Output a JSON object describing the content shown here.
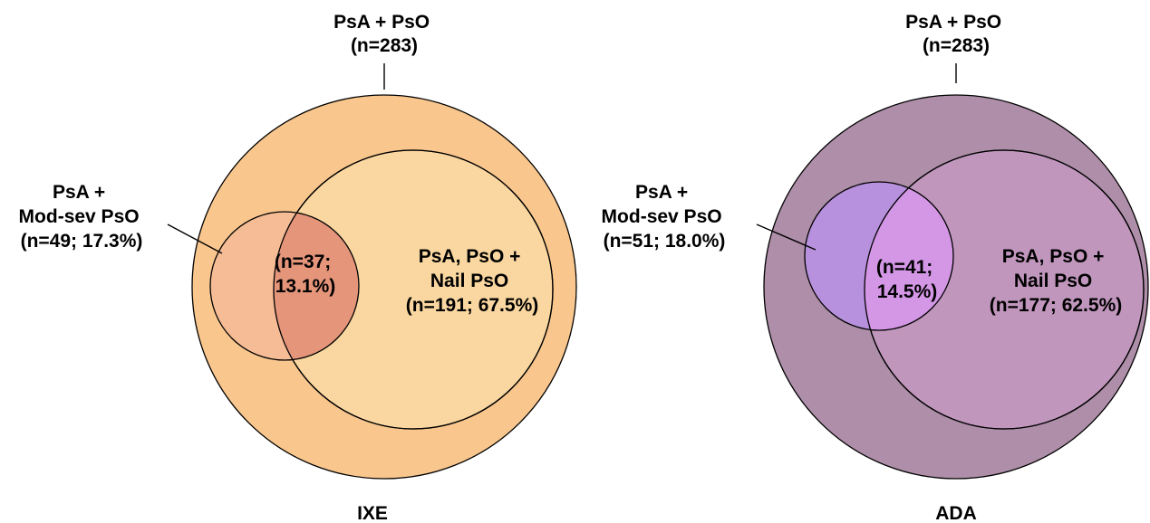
{
  "panels": [
    {
      "name": "IXE",
      "colors": {
        "outer": "#F9C78E",
        "nail": "#FAD7A0",
        "modsev": "#F5BC95",
        "overlap": "#E4957A"
      },
      "outer": {
        "line1": "PsA + PsO",
        "line2": "(n=283)"
      },
      "modsev": {
        "line1": "PsA +",
        "line2": "Mod-sev PsO",
        "line3": "(n=49; 17.3%)"
      },
      "overlap": {
        "line1": "(n=37;",
        "line2": "13.1%)"
      },
      "nail": {
        "line1": "PsA, PsO +",
        "line2": "Nail PsO",
        "line3": "(n=191; 67.5%)"
      }
    },
    {
      "name": "ADA",
      "colors": {
        "outer": "#AE8EA8",
        "nail": "#C096BD",
        "modsev": "#B891DE",
        "overlap": "#D497E6"
      },
      "outer": {
        "line1": "PsA + PsO",
        "line2": "(n=283)"
      },
      "modsev": {
        "line1": "PsA +",
        "line2": "Mod-sev PsO",
        "line3": "(n=51; 18.0%)"
      },
      "overlap": {
        "line1": "(n=41;",
        "line2": "14.5%)"
      },
      "nail": {
        "line1": "PsA, PsO +",
        "line2": "Nail PsO",
        "line3": "(n=177; 62.5%)"
      }
    }
  ]
}
